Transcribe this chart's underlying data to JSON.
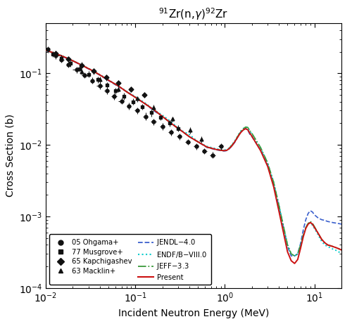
{
  "title": "$^{91}$Zr(n,$\\gamma$)$^{92}$Zr",
  "xlabel": "Incident Neutron Energy (MeV)",
  "ylabel": "Cross Section (b)",
  "xlim": [
    0.01,
    20
  ],
  "ylim": [
    0.0001,
    0.5
  ],
  "ohgama_x": [
    0.0105,
    0.013,
    0.015,
    0.018,
    0.022,
    0.027,
    0.033,
    0.04,
    0.048,
    0.058,
    0.07,
    0.085,
    0.105,
    0.13,
    0.16,
    0.2,
    0.25,
    0.31,
    0.385,
    0.48,
    0.59,
    0.73,
    0.9
  ],
  "ohgama_y": [
    0.215,
    0.175,
    0.155,
    0.132,
    0.112,
    0.094,
    0.079,
    0.067,
    0.057,
    0.048,
    0.041,
    0.035,
    0.03,
    0.025,
    0.021,
    0.018,
    0.015,
    0.013,
    0.011,
    0.0095,
    0.0082,
    0.0072,
    0.0095
  ],
  "ohgama_xerr_lo": [
    0.0005,
    0.001,
    0.001,
    0.001,
    0.002,
    0.002,
    0.002,
    0.003,
    0.003,
    0.004,
    0.005,
    0.005,
    0.007,
    0.009,
    0.011,
    0.014,
    0.017,
    0.021,
    0.025,
    0.032,
    0.039,
    0.048,
    0.06
  ],
  "ohgama_xerr_hi": [
    0.0005,
    0.001,
    0.001,
    0.001,
    0.002,
    0.002,
    0.002,
    0.003,
    0.003,
    0.004,
    0.005,
    0.005,
    0.007,
    0.009,
    0.011,
    0.014,
    0.017,
    0.021,
    0.025,
    0.032,
    0.039,
    0.048,
    0.06
  ],
  "ohgama_yerr": [
    0.02,
    0.017,
    0.015,
    0.013,
    0.011,
    0.009,
    0.008,
    0.007,
    0.006,
    0.005,
    0.004,
    0.004,
    0.003,
    0.003,
    0.002,
    0.002,
    0.0015,
    0.0013,
    0.0011,
    0.0009,
    0.0008,
    0.0007,
    0.001
  ],
  "musgrove_x": [
    0.012,
    0.015,
    0.019,
    0.024,
    0.03,
    0.038,
    0.048,
    0.06,
    0.075,
    0.095,
    0.12,
    0.15,
    0.19,
    0.24,
    0.3
  ],
  "musgrove_y": [
    0.185,
    0.163,
    0.138,
    0.116,
    0.097,
    0.081,
    0.068,
    0.057,
    0.048,
    0.04,
    0.034,
    0.028,
    0.024,
    0.02,
    0.017
  ],
  "musgrove_yerr": [
    0.018,
    0.016,
    0.014,
    0.012,
    0.01,
    0.008,
    0.007,
    0.006,
    0.005,
    0.004,
    0.003,
    0.003,
    0.002,
    0.002,
    0.0017
  ],
  "kapchigashev_x": [
    0.013,
    0.018,
    0.025,
    0.034,
    0.047,
    0.065,
    0.09,
    0.125
  ],
  "kapchigashev_y": [
    0.19,
    0.158,
    0.13,
    0.107,
    0.088,
    0.073,
    0.06,
    0.05
  ],
  "kapchigashev_yerr": [
    0.018,
    0.015,
    0.013,
    0.01,
    0.009,
    0.007,
    0.006,
    0.005
  ],
  "macklin_x": [
    0.025,
    0.04,
    0.065,
    0.105,
    0.16,
    0.26,
    0.41,
    0.55
  ],
  "macklin_y": [
    0.105,
    0.081,
    0.06,
    0.044,
    0.033,
    0.023,
    0.016,
    0.012
  ],
  "macklin_yerr": [
    0.01,
    0.008,
    0.006,
    0.004,
    0.003,
    0.002,
    0.0016,
    0.0012
  ],
  "jendl_x": [
    0.01,
    0.012,
    0.015,
    0.018,
    0.022,
    0.027,
    0.033,
    0.04,
    0.05,
    0.065,
    0.08,
    0.1,
    0.13,
    0.16,
    0.2,
    0.25,
    0.32,
    0.4,
    0.5,
    0.63,
    0.8,
    0.9,
    0.95,
    1.0,
    1.05,
    1.1,
    1.2,
    1.3,
    1.4,
    1.5,
    1.6,
    1.7,
    1.8,
    1.9,
    2.0,
    2.5,
    3.0,
    3.5,
    4.0,
    5.0,
    5.5,
    6.0,
    6.5,
    7.0,
    7.5,
    8.0,
    8.5,
    9.0,
    9.5,
    10.0,
    11.0,
    12.0,
    13.0,
    14.0,
    16.0,
    18.0,
    20.0
  ],
  "jendl_y": [
    0.207,
    0.192,
    0.173,
    0.157,
    0.14,
    0.123,
    0.108,
    0.094,
    0.079,
    0.065,
    0.055,
    0.046,
    0.037,
    0.03,
    0.025,
    0.02,
    0.016,
    0.013,
    0.011,
    0.0092,
    0.0085,
    0.0083,
    0.0082,
    0.0082,
    0.0083,
    0.0086,
    0.0096,
    0.011,
    0.013,
    0.015,
    0.016,
    0.017,
    0.016,
    0.014,
    0.013,
    0.0085,
    0.0053,
    0.0028,
    0.0014,
    0.00038,
    0.00028,
    0.00028,
    0.0003,
    0.00042,
    0.00065,
    0.0009,
    0.0011,
    0.0012,
    0.00115,
    0.00105,
    0.00095,
    0.0009,
    0.00088,
    0.00085,
    0.00082,
    0.0008,
    0.00078
  ],
  "endf_x": [
    0.01,
    0.012,
    0.015,
    0.018,
    0.022,
    0.027,
    0.033,
    0.04,
    0.05,
    0.065,
    0.08,
    0.1,
    0.13,
    0.16,
    0.2,
    0.25,
    0.32,
    0.4,
    0.5,
    0.63,
    0.8,
    0.9,
    0.95,
    1.0,
    1.05,
    1.1,
    1.2,
    1.3,
    1.4,
    1.5,
    1.6,
    1.7,
    1.8,
    1.9,
    2.0,
    2.5,
    3.0,
    3.5,
    4.0,
    5.0,
    5.5,
    6.0,
    6.5,
    7.0,
    7.5,
    8.0,
    8.5,
    9.0,
    9.5,
    10.0,
    11.0,
    12.0,
    13.0,
    14.0,
    16.0,
    18.0,
    20.0
  ],
  "endf_y": [
    0.21,
    0.195,
    0.176,
    0.16,
    0.142,
    0.125,
    0.11,
    0.096,
    0.081,
    0.066,
    0.056,
    0.047,
    0.038,
    0.031,
    0.026,
    0.021,
    0.016,
    0.014,
    0.011,
    0.0095,
    0.0088,
    0.0086,
    0.0085,
    0.0085,
    0.0086,
    0.0089,
    0.01,
    0.0115,
    0.0135,
    0.0155,
    0.0168,
    0.0178,
    0.0173,
    0.0155,
    0.014,
    0.009,
    0.0055,
    0.003,
    0.00145,
    0.0004,
    0.0003,
    0.00028,
    0.0003,
    0.0004,
    0.00055,
    0.0007,
    0.0008,
    0.00082,
    0.00075,
    0.00068,
    0.00055,
    0.00045,
    0.0004,
    0.00038,
    0.00035,
    0.00033,
    0.0003
  ],
  "jeff_x": [
    0.01,
    0.012,
    0.015,
    0.018,
    0.022,
    0.027,
    0.033,
    0.04,
    0.05,
    0.065,
    0.08,
    0.1,
    0.13,
    0.16,
    0.2,
    0.25,
    0.32,
    0.4,
    0.5,
    0.63,
    0.8,
    0.9,
    0.95,
    1.0,
    1.05,
    1.1,
    1.2,
    1.3,
    1.4,
    1.5,
    1.6,
    1.7,
    1.8,
    1.9,
    2.0,
    2.5,
    3.0,
    3.5,
    4.0,
    5.0,
    5.5,
    6.0,
    6.5,
    7.0,
    7.5,
    8.0,
    8.5,
    9.0,
    9.5,
    10.0,
    11.0,
    12.0,
    13.0,
    14.0,
    16.0,
    18.0,
    20.0
  ],
  "jeff_y": [
    0.209,
    0.193,
    0.174,
    0.158,
    0.141,
    0.124,
    0.109,
    0.095,
    0.08,
    0.066,
    0.055,
    0.046,
    0.037,
    0.031,
    0.025,
    0.02,
    0.016,
    0.013,
    0.011,
    0.0093,
    0.0086,
    0.0084,
    0.0083,
    0.0083,
    0.0084,
    0.0088,
    0.0099,
    0.0114,
    0.0133,
    0.0153,
    0.0167,
    0.0177,
    0.0175,
    0.0158,
    0.0145,
    0.0092,
    0.0056,
    0.003,
    0.00145,
    0.0004,
    0.0003,
    0.00028,
    0.0003,
    0.0004,
    0.00055,
    0.0007,
    0.0008,
    0.00085,
    0.0008,
    0.00072,
    0.00058,
    0.00048,
    0.00043,
    0.0004,
    0.00038,
    0.00036,
    0.00034
  ],
  "present_x": [
    0.01,
    0.012,
    0.015,
    0.018,
    0.022,
    0.027,
    0.033,
    0.04,
    0.05,
    0.065,
    0.08,
    0.1,
    0.13,
    0.16,
    0.2,
    0.25,
    0.32,
    0.4,
    0.5,
    0.63,
    0.8,
    0.9,
    0.95,
    1.0,
    1.05,
    1.1,
    1.2,
    1.3,
    1.4,
    1.5,
    1.6,
    1.7,
    1.8,
    1.9,
    2.0,
    2.5,
    3.0,
    3.5,
    4.0,
    5.0,
    5.5,
    6.0,
    6.5,
    7.0,
    7.5,
    8.0,
    8.5,
    9.0,
    9.5,
    10.0,
    11.0,
    12.0,
    13.0,
    14.0,
    16.0,
    18.0,
    20.0
  ],
  "present_y": [
    0.21,
    0.194,
    0.175,
    0.159,
    0.141,
    0.124,
    0.109,
    0.095,
    0.08,
    0.066,
    0.055,
    0.046,
    0.037,
    0.031,
    0.025,
    0.02,
    0.016,
    0.013,
    0.011,
    0.0093,
    0.0086,
    0.0084,
    0.0083,
    0.0083,
    0.0084,
    0.0087,
    0.0097,
    0.0112,
    0.013,
    0.0148,
    0.0161,
    0.0168,
    0.0162,
    0.0145,
    0.0132,
    0.0083,
    0.005,
    0.0026,
    0.0012,
    0.00032,
    0.00024,
    0.00022,
    0.00025,
    0.00036,
    0.00052,
    0.00068,
    0.00078,
    0.00082,
    0.00078,
    0.0007,
    0.00058,
    0.00048,
    0.00043,
    0.0004,
    0.00038,
    0.00036,
    0.00034
  ],
  "jendl_color": "#3a5fcd",
  "endf_color": "#00cccc",
  "jeff_color": "#3a9a3a",
  "present_color": "#cc1111",
  "data_color": "#111111"
}
